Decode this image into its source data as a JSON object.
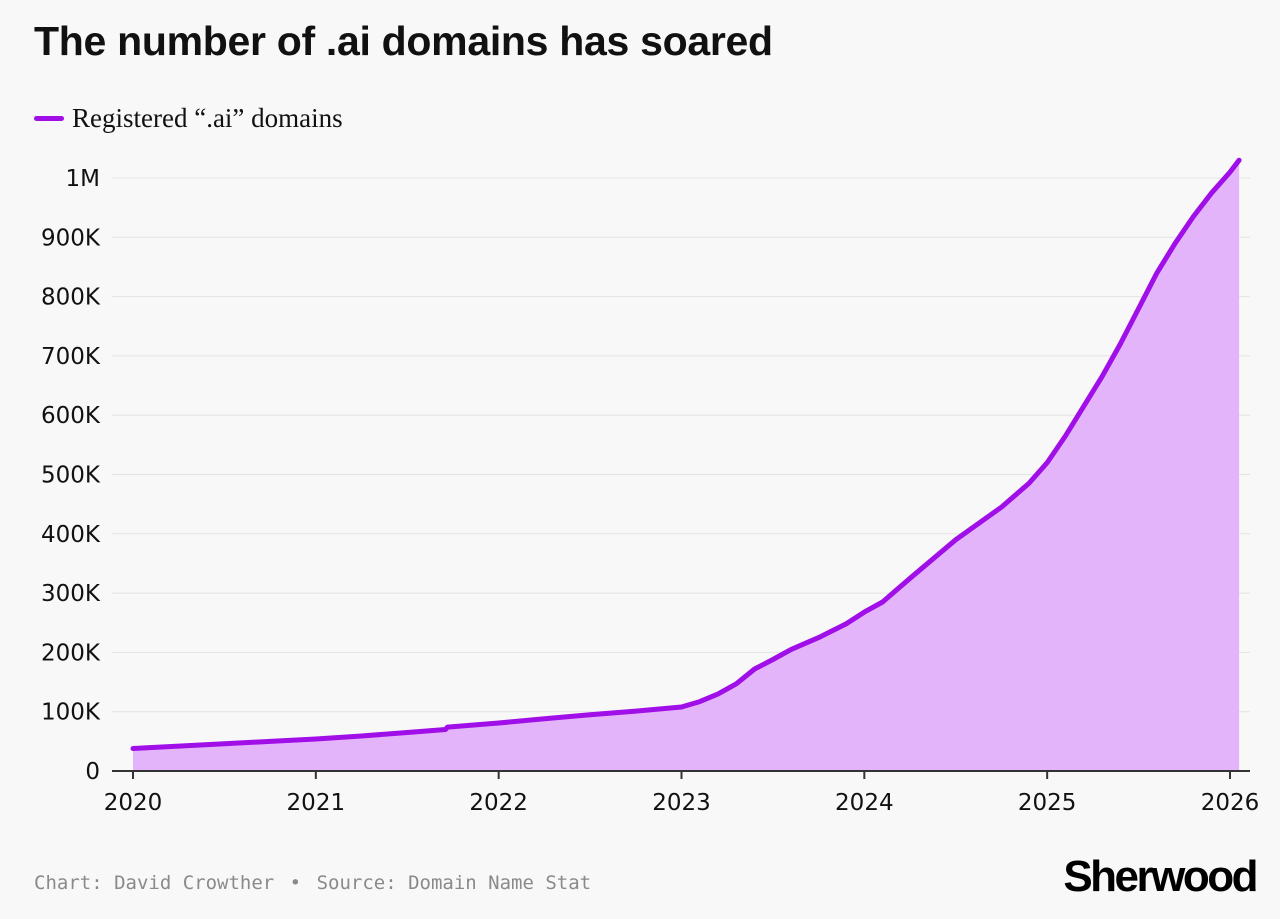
{
  "title": "The number of .ai domains has soared",
  "footer": {
    "credit": "Chart: David Crowther",
    "separator": "•",
    "source": "Source: Domain Name Stat"
  },
  "brand": "Sherwood",
  "colors": {
    "line": "#a00ee8",
    "fill": "#e4b4fa",
    "grid": "#e3e3e3",
    "axis": "#333333",
    "background": "#f8f8f8"
  },
  "chart_data": {
    "type": "area",
    "title": "The number of .ai domains has soared",
    "xlabel": "",
    "ylabel": "",
    "xlim": [
      2020,
      2026
    ],
    "ylim": [
      0,
      1000000
    ],
    "y_ticks": [
      0,
      100000,
      200000,
      300000,
      400000,
      500000,
      600000,
      700000,
      800000,
      900000,
      1000000
    ],
    "y_tick_labels": [
      "0",
      "100K",
      "200K",
      "300K",
      "400K",
      "500K",
      "600K",
      "700K",
      "800K",
      "900K",
      "1M"
    ],
    "x_ticks": [
      2020,
      2021,
      2022,
      2023,
      2024,
      2025,
      2026
    ],
    "x_tick_labels": [
      "2020",
      "2021",
      "2022",
      "2023",
      "2024",
      "2025",
      "2026"
    ],
    "grid": true,
    "legend": "top-left",
    "series": [
      {
        "name": "Registered “.ai” domains",
        "x": [
          2020.0,
          2020.25,
          2020.5,
          2020.75,
          2021.0,
          2021.25,
          2021.5,
          2021.71,
          2021.72,
          2022.0,
          2022.25,
          2022.5,
          2022.75,
          2023.0,
          2023.1,
          2023.2,
          2023.3,
          2023.4,
          2023.5,
          2023.6,
          2023.75,
          2023.9,
          2024.0,
          2024.1,
          2024.25,
          2024.5,
          2024.75,
          2024.9,
          2025.0,
          2025.1,
          2025.2,
          2025.3,
          2025.4,
          2025.5,
          2025.6,
          2025.7,
          2025.8,
          2025.9,
          2026.0,
          2026.05
        ],
        "values": [
          38000,
          42000,
          46000,
          50000,
          54000,
          59000,
          65000,
          70000,
          74000,
          81000,
          88000,
          95000,
          101000,
          108000,
          117000,
          130000,
          147000,
          172000,
          188000,
          205000,
          225000,
          248000,
          268000,
          285000,
          325000,
          390000,
          445000,
          485000,
          520000,
          565000,
          615000,
          665000,
          720000,
          780000,
          840000,
          890000,
          935000,
          975000,
          1010000,
          1030000
        ]
      }
    ]
  }
}
